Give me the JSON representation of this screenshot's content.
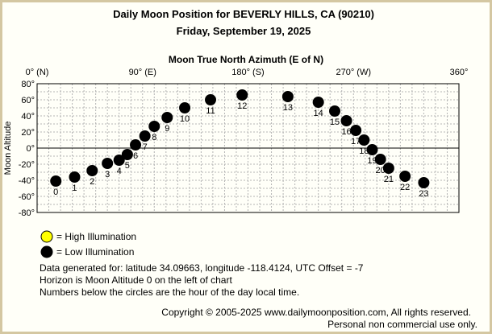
{
  "header": {
    "title": "Daily Moon Position for BEVERLY HILLS, CA (90210)",
    "date": "Friday, September 19, 2025"
  },
  "legend": {
    "high_label": "= High Illumination",
    "low_label": "= Low Illumination"
  },
  "info": {
    "line1": "Data generated for: latitude 34.09663, longitude -118.4124, UTC Offset = -7",
    "line2": "Horizon is Moon Altitude 0 on the left of chart",
    "line3": "Numbers below the circles are the hour of the day local time."
  },
  "footer": {
    "copyright": "Copyright © 2005-2025 www.dailymoonposition.com, All rights reserved.",
    "personal": "Personal non commercial use only."
  },
  "colors": {
    "high": "#ffff00",
    "low": "#000000",
    "grid": "#b4b4b4",
    "frame": "#d4c7a2"
  },
  "chart_data": {
    "type": "scatter",
    "title": "Moon True North Azimuth (E of N)",
    "ylabel": "Moon Altitude",
    "xlim": [
      0,
      360
    ],
    "ylim": [
      -80,
      80
    ],
    "x_ticks": [
      "0° (N)",
      "90° (E)",
      "180° (S)",
      "270° (W)",
      "360°"
    ],
    "x_tick_values": [
      0,
      90,
      180,
      270,
      360
    ],
    "y_ticks": [
      "80°",
      "60°",
      "40°",
      "20°",
      "0°",
      "-20°",
      "-40°",
      "-60°",
      "-80°"
    ],
    "y_tick_values": [
      80,
      60,
      40,
      20,
      0,
      -20,
      -40,
      -60,
      -80
    ],
    "grid": true,
    "series": [
      {
        "name": "Low Illumination",
        "points": [
          {
            "hour": "0",
            "azimuth": 16,
            "altitude": -41
          },
          {
            "hour": "1",
            "azimuth": 32,
            "altitude": -36
          },
          {
            "hour": "2",
            "azimuth": 47,
            "altitude": -28
          },
          {
            "hour": "3",
            "azimuth": 60,
            "altitude": -19
          },
          {
            "hour": "4",
            "azimuth": 70,
            "altitude": -15
          },
          {
            "hour": "5",
            "azimuth": 77,
            "altitude": -8
          },
          {
            "hour": "6",
            "azimuth": 84,
            "altitude": 4
          },
          {
            "hour": "7",
            "azimuth": 92,
            "altitude": 15
          },
          {
            "hour": "8",
            "azimuth": 100,
            "altitude": 27
          },
          {
            "hour": "9",
            "azimuth": 111,
            "altitude": 38
          },
          {
            "hour": "10",
            "azimuth": 126,
            "altitude": 50
          },
          {
            "hour": "11",
            "azimuth": 148,
            "altitude": 60
          },
          {
            "hour": "12",
            "azimuth": 175,
            "altitude": 66
          },
          {
            "hour": "13",
            "azimuth": 214,
            "altitude": 64
          },
          {
            "hour": "14",
            "azimuth": 240,
            "altitude": 57
          },
          {
            "hour": "15",
            "azimuth": 254,
            "altitude": 46
          },
          {
            "hour": "16",
            "azimuth": 264,
            "altitude": 34
          },
          {
            "hour": "17",
            "azimuth": 272,
            "altitude": 22
          },
          {
            "hour": "18",
            "azimuth": 279,
            "altitude": 10
          },
          {
            "hour": "19",
            "azimuth": 286,
            "altitude": -2
          },
          {
            "hour": "20",
            "azimuth": 293,
            "altitude": -14
          },
          {
            "hour": "21",
            "azimuth": 300,
            "altitude": -25
          },
          {
            "hour": "22",
            "azimuth": 314,
            "altitude": -35
          },
          {
            "hour": "23",
            "azimuth": 330,
            "altitude": -43
          }
        ]
      }
    ]
  }
}
